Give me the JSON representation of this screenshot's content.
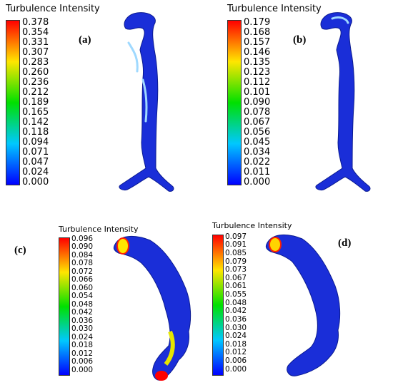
{
  "colors": {
    "scale": [
      "#0000ff",
      "#00c8ff",
      "#00e000",
      "#ffe600",
      "#ff0000"
    ],
    "model_base": "#1a2ed8",
    "model_highlight": "#9fd9ff"
  },
  "panels": [
    {
      "label": "(a)",
      "colorbar_title": "Turbulence Intensity",
      "ticks": [
        "0.378",
        "0.354",
        "0.331",
        "0.307",
        "0.283",
        "0.260",
        "0.236",
        "0.212",
        "0.189",
        "0.165",
        "0.142",
        "0.118",
        "0.094",
        "0.071",
        "0.047",
        "0.024",
        "0.000"
      ]
    },
    {
      "label": "(b)",
      "colorbar_title": "Turbulence Intensity",
      "ticks": [
        "0.179",
        "0.168",
        "0.157",
        "0.146",
        "0.135",
        "0.123",
        "0.112",
        "0.101",
        "0.090",
        "0.078",
        "0.067",
        "0.056",
        "0.045",
        "0.034",
        "0.022",
        "0.011",
        "0.000"
      ]
    },
    {
      "label": "(c)",
      "colorbar_title": "Turbulence Intensity",
      "ticks": [
        "0.096",
        "0.090",
        "0.084",
        "0.078",
        "0.072",
        "0.066",
        "0.060",
        "0.054",
        "0.048",
        "0.042",
        "0.036",
        "0.030",
        "0.024",
        "0.018",
        "0.012",
        "0.006",
        "0.000"
      ]
    },
    {
      "label": "(d)",
      "colorbar_title": "Turbulence Intensity",
      "ticks": [
        "0.097",
        "0.091",
        "0.085",
        "0.079",
        "0.073",
        "0.067",
        "0.061",
        "0.055",
        "0.048",
        "0.042",
        "0.036",
        "0.030",
        "0.024",
        "0.018",
        "0.012",
        "0.006",
        "0.000"
      ]
    }
  ]
}
